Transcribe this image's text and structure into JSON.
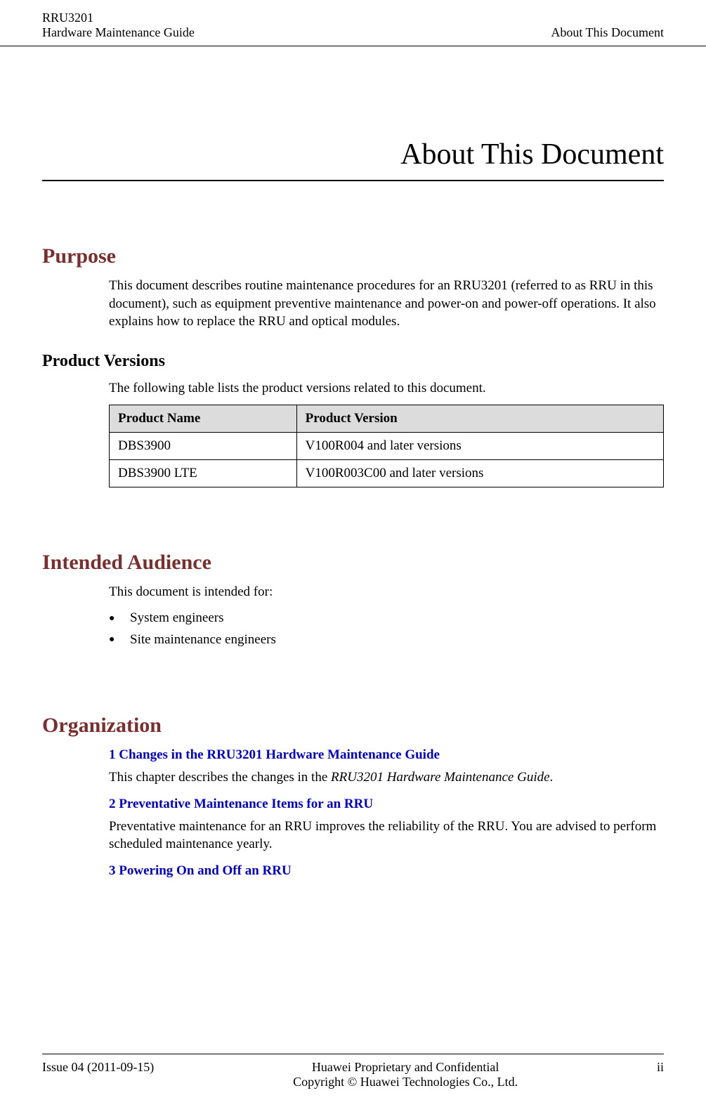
{
  "header": {
    "product": "RRU3201",
    "doc_title": "Hardware Maintenance Guide",
    "section": "About This Document"
  },
  "title": "About This Document",
  "purpose": {
    "heading": "Purpose",
    "text": "This document describes routine maintenance procedures for an RRU3201 (referred to as RRU in this document), such as equipment preventive maintenance and power-on and power-off operations. It also explains how to replace the RRU and optical modules."
  },
  "product_versions": {
    "heading": "Product Versions",
    "intro": "The following table lists the product versions related to this document.",
    "columns": [
      "Product Name",
      "Product Version"
    ],
    "rows": [
      [
        "DBS3900",
        "V100R004 and later versions"
      ],
      [
        "DBS3900 LTE",
        "V100R003C00 and later versions"
      ]
    ]
  },
  "audience": {
    "heading": "Intended Audience",
    "intro": "This document is intended for:",
    "items": [
      "System engineers",
      "Site maintenance engineers"
    ]
  },
  "organization": {
    "heading": "Organization",
    "entries": [
      {
        "link": "1 Changes in the RRU3201 Hardware Maintenance Guide",
        "desc_prefix": "This chapter describes the changes in the ",
        "desc_italic": "RRU3201 Hardware Maintenance Guide",
        "desc_suffix": "."
      },
      {
        "link": "2 Preventative Maintenance Items for an RRU",
        "desc": "Preventative maintenance for an RRU improves the reliability of the RRU. You are advised to perform scheduled maintenance yearly."
      },
      {
        "link": "3 Powering On and Off an RRU"
      }
    ]
  },
  "footer": {
    "issue": "Issue 04 (2011-09-15)",
    "line1": "Huawei Proprietary and Confidential",
    "line2": "Copyright © Huawei Technologies Co., Ltd.",
    "page": "ii"
  },
  "colors": {
    "heading_brown": "#7b2e2e",
    "link_blue": "#0000cc",
    "table_header_bg": "#dcdcdc"
  }
}
